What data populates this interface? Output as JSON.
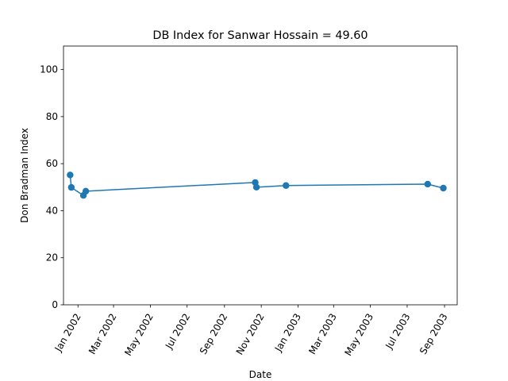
{
  "chart_data": {
    "type": "line",
    "title": "DB Index for Sanwar Hossain = 49.60",
    "xlabel": "Date",
    "ylabel": "Don Bradman Index",
    "ylim": [
      0,
      110
    ],
    "xlim": [
      "2001-12-08",
      "2003-09-22"
    ],
    "x_ticks": [
      {
        "date": "2002-01-01",
        "label": "Jan 2002"
      },
      {
        "date": "2002-03-01",
        "label": "Mar 2002"
      },
      {
        "date": "2002-05-01",
        "label": "May 2002"
      },
      {
        "date": "2002-07-01",
        "label": "Jul 2002"
      },
      {
        "date": "2002-09-01",
        "label": "Sep 2002"
      },
      {
        "date": "2002-11-01",
        "label": "Nov 2002"
      },
      {
        "date": "2003-01-01",
        "label": "Jan 2003"
      },
      {
        "date": "2003-03-01",
        "label": "Mar 2003"
      },
      {
        "date": "2003-05-01",
        "label": "May 2003"
      },
      {
        "date": "2003-07-01",
        "label": "Jul 2003"
      },
      {
        "date": "2003-09-01",
        "label": "Sep 2003"
      }
    ],
    "y_ticks": [
      0,
      20,
      40,
      60,
      80,
      100
    ],
    "grid": false,
    "series": [
      {
        "color": "#1f77b4",
        "points": [
          {
            "x": "2001-12-19",
            "y": 55.2
          },
          {
            "x": "2001-12-21",
            "y": 49.9
          },
          {
            "x": "2002-01-10",
            "y": 46.5
          },
          {
            "x": "2002-01-14",
            "y": 48.3
          },
          {
            "x": "2002-10-22",
            "y": 52.0
          },
          {
            "x": "2002-10-24",
            "y": 50.0
          },
          {
            "x": "2002-12-12",
            "y": 50.7
          },
          {
            "x": "2003-08-04",
            "y": 51.3
          },
          {
            "x": "2003-08-30",
            "y": 49.6
          }
        ]
      }
    ]
  }
}
